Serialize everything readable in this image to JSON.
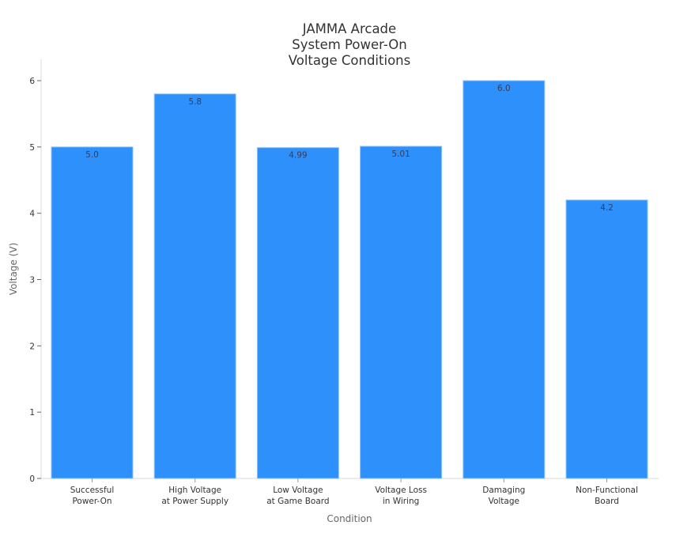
{
  "chart_data": {
    "type": "bar",
    "title": "JAMMA Arcade System Power-On Voltage Conditions",
    "title_lines": [
      "JAMMA Arcade",
      "System Power-On",
      "Voltage Conditions"
    ],
    "xlabel": "Condition",
    "ylabel": "Voltage (V)",
    "categories": [
      "Successful Power-On",
      "High Voltage at Power Supply",
      "Low Voltage at Game Board",
      "Voltage Loss in Wiring",
      "Damaging Voltage",
      "Non-Functional Board"
    ],
    "category_lines": [
      [
        "Successful",
        "Power-On"
      ],
      [
        "High Voltage",
        "at Power Supply"
      ],
      [
        "Low Voltage",
        "at Game Board"
      ],
      [
        "Voltage Loss",
        "in Wiring"
      ],
      [
        "Damaging",
        "Voltage"
      ],
      [
        "Non-Functional",
        "Board"
      ]
    ],
    "values": [
      5.0,
      5.8,
      4.99,
      5.01,
      6.0,
      4.2
    ],
    "value_labels": [
      "5.0",
      "5.8",
      "4.99",
      "5.01",
      "6.0",
      "4.2"
    ],
    "yticks": [
      0,
      1,
      2,
      3,
      4,
      5,
      6
    ],
    "ylim": [
      0,
      6.3
    ],
    "grid": false,
    "legend": null,
    "bar_color": "#2e90fa",
    "bar_edge_color": "#8ec3fb"
  }
}
